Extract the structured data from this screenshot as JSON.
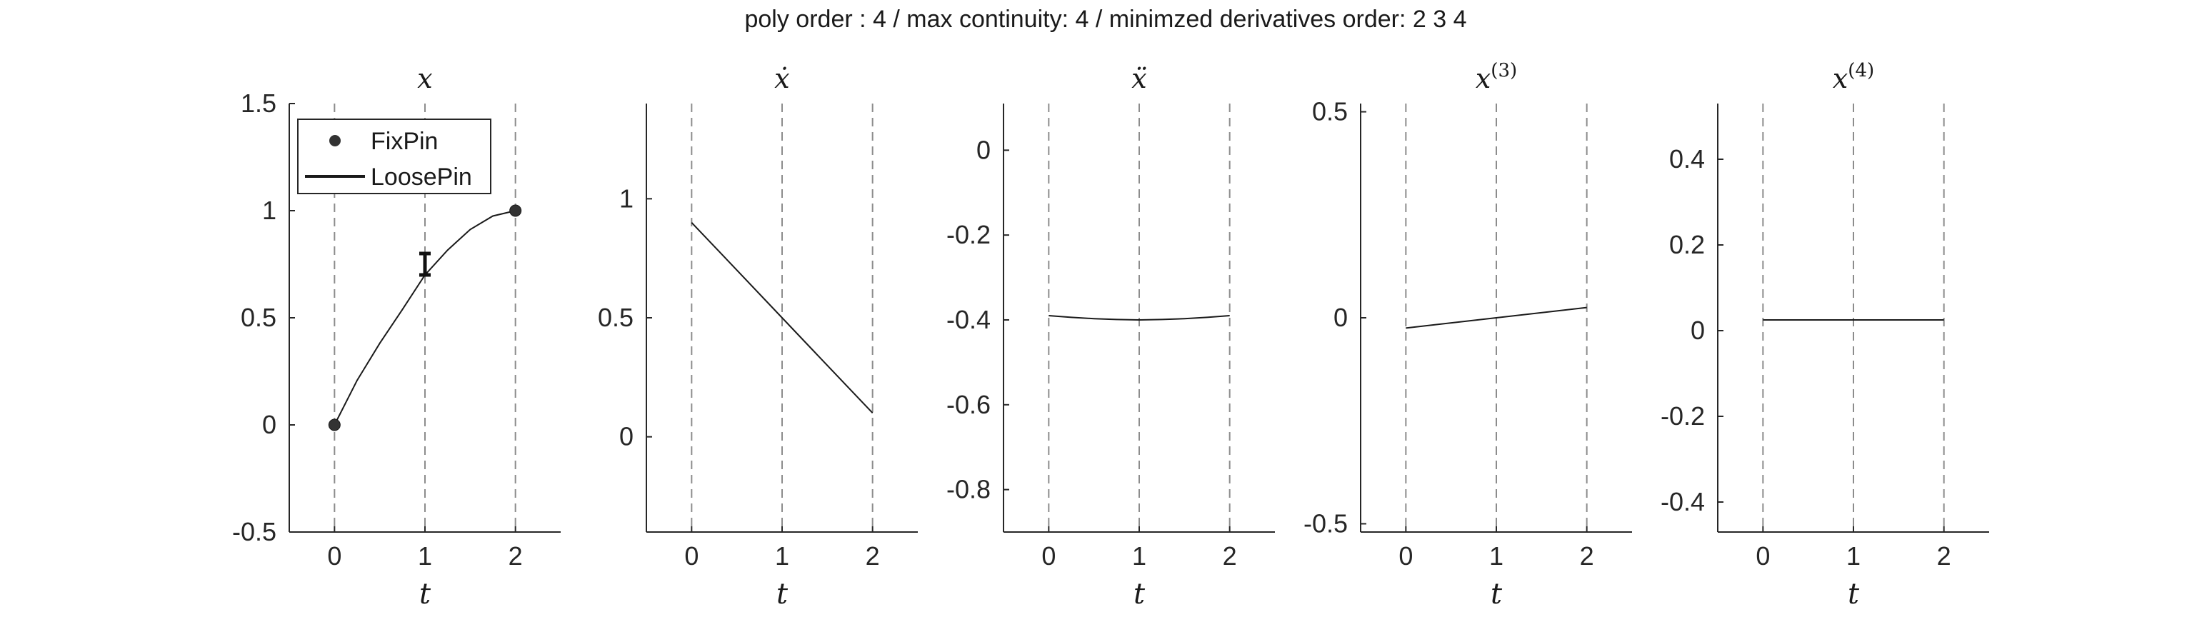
{
  "figure": {
    "title": "poly order : 4 / max continuity: 4 / minimzed derivatives order: 2  3  4"
  },
  "chart_data": [
    {
      "type": "line",
      "title": "x",
      "title_sup": "",
      "xlabel": "t",
      "ylabel": "",
      "xlim": [
        -0.5,
        2.5
      ],
      "ylim": [
        -0.5,
        1.5
      ],
      "xticks": [
        0,
        1,
        2
      ],
      "xtick_labels": [
        "0",
        "1",
        "2"
      ],
      "yticks": [
        -0.5,
        0,
        0.5,
        1,
        1.5
      ],
      "ytick_labels": [
        "-0.5",
        "0",
        "0.5",
        "1",
        "1.5"
      ],
      "vlines": [
        0,
        1,
        2
      ],
      "grid": false,
      "series": [
        {
          "name": "LoosePin",
          "kind": "curve",
          "x": [
            0,
            0.25,
            0.5,
            0.75,
            1.0,
            1.25,
            1.5,
            1.75,
            2.0
          ],
          "y": [
            0,
            0.208,
            0.381,
            0.538,
            0.7,
            0.816,
            0.912,
            0.975,
            1.0
          ]
        },
        {
          "name": "FixPin",
          "kind": "points",
          "x": [
            0,
            2
          ],
          "y": [
            0,
            1
          ]
        }
      ],
      "error_bars": [
        {
          "x": 1,
          "low": 0.7,
          "high": 0.8
        }
      ],
      "legend": {
        "position": "top-left",
        "entries": [
          {
            "label": "FixPin",
            "marker": "dot"
          },
          {
            "label": "LoosePin",
            "marker": "line"
          }
        ]
      }
    },
    {
      "type": "line",
      "title": "ẋ",
      "title_sup": "",
      "xlabel": "t",
      "ylabel": "",
      "xlim": [
        -0.5,
        2.5
      ],
      "ylim": [
        -0.4,
        1.4
      ],
      "xticks": [
        0,
        1,
        2
      ],
      "xtick_labels": [
        "0",
        "1",
        "2"
      ],
      "yticks": [
        0,
        0.5,
        1
      ],
      "ytick_labels": [
        "0",
        "0.5",
        "1"
      ],
      "vlines": [
        0,
        1,
        2
      ],
      "grid": false,
      "series": [
        {
          "kind": "curve",
          "x": [
            0,
            0.5,
            1.0,
            1.5,
            2.0
          ],
          "y": [
            0.9,
            0.7,
            0.5,
            0.3,
            0.1
          ]
        }
      ]
    },
    {
      "type": "line",
      "title": "ẍ",
      "title_sup": "",
      "xlabel": "t",
      "ylabel": "",
      "xlim": [
        -0.5,
        2.5
      ],
      "ylim": [
        -0.9,
        0.11
      ],
      "xticks": [
        0,
        1,
        2
      ],
      "xtick_labels": [
        "0",
        "1",
        "2"
      ],
      "yticks": [
        0,
        -0.2,
        -0.4,
        -0.6,
        -0.8
      ],
      "ytick_labels": [
        "0",
        "-0.2",
        "-0.4",
        "-0.6",
        "-0.8"
      ],
      "vlines": [
        0,
        1,
        2
      ],
      "grid": false,
      "series": [
        {
          "kind": "curve",
          "x": [
            0,
            0.25,
            0.5,
            0.75,
            1.0,
            1.25,
            1.5,
            1.75,
            2.0
          ],
          "y": [
            -0.39,
            -0.394,
            -0.397,
            -0.399,
            -0.4,
            -0.399,
            -0.397,
            -0.394,
            -0.39
          ]
        }
      ]
    },
    {
      "type": "line",
      "title": "x",
      "title_sup": "(3)",
      "xlabel": "t",
      "ylabel": "",
      "xlim": [
        -0.5,
        2.5
      ],
      "ylim": [
        -0.52,
        0.52
      ],
      "xticks": [
        0,
        1,
        2
      ],
      "xtick_labels": [
        "0",
        "1",
        "2"
      ],
      "yticks": [
        0.5,
        0,
        -0.5
      ],
      "ytick_labels": [
        "0.5",
        "0",
        "-0.5"
      ],
      "vlines": [
        0,
        1,
        2
      ],
      "grid": false,
      "series": [
        {
          "kind": "curve",
          "x": [
            0,
            1,
            2
          ],
          "y": [
            -0.025,
            0.0,
            0.025
          ]
        }
      ]
    },
    {
      "type": "line",
      "title": "x",
      "title_sup": "(4)",
      "xlabel": "t",
      "ylabel": "",
      "xlim": [
        -0.5,
        2.5
      ],
      "ylim": [
        -0.47,
        0.53
      ],
      "xticks": [
        0,
        1,
        2
      ],
      "xtick_labels": [
        "0",
        "1",
        "2"
      ],
      "yticks": [
        0.4,
        0.2,
        0,
        -0.2,
        -0.4
      ],
      "ytick_labels": [
        "0.4",
        "0.2",
        "0",
        "-0.2",
        "-0.4"
      ],
      "vlines": [
        0,
        1,
        2
      ],
      "grid": false,
      "series": [
        {
          "kind": "curve",
          "x": [
            0,
            1,
            2
          ],
          "y": [
            0.025,
            0.025,
            0.025
          ]
        }
      ]
    }
  ]
}
